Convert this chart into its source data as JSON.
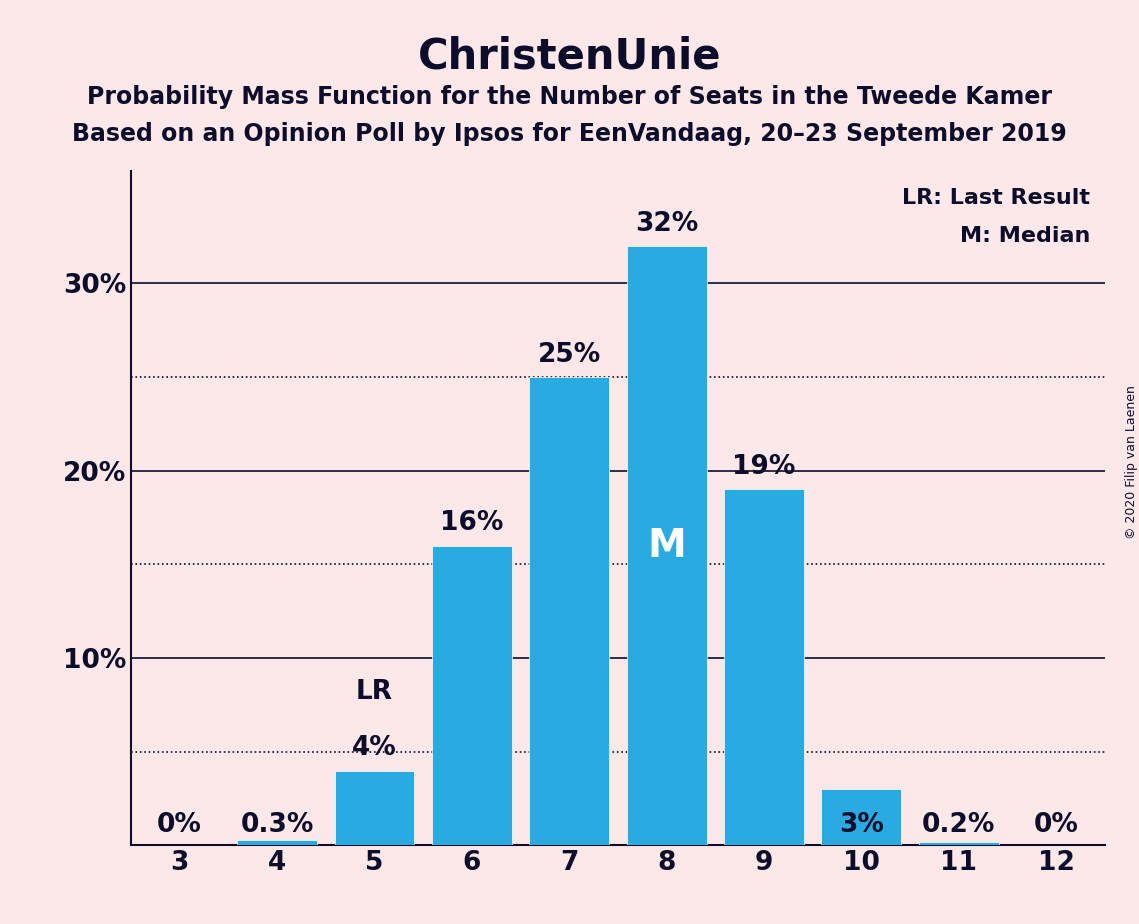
{
  "title": "ChristenUnie",
  "subtitle1": "Probability Mass Function for the Number of Seats in the Tweede Kamer",
  "subtitle2": "Based on an Opinion Poll by Ipsos for EenVandaag, 20–23 September 2019",
  "copyright": "© 2020 Filip van Laenen",
  "seats": [
    3,
    4,
    5,
    6,
    7,
    8,
    9,
    10,
    11,
    12
  ],
  "probabilities": [
    0.0,
    0.3,
    4.0,
    16.0,
    25.0,
    32.0,
    19.0,
    3.0,
    0.2,
    0.0
  ],
  "prob_labels": [
    "0%",
    "0.3%",
    "4%",
    "16%",
    "25%",
    "32%",
    "19%",
    "3%",
    "0.2%",
    "0%"
  ],
  "bar_color": "#29abe2",
  "background_color": "#fce8e8",
  "text_color": "#0d0d2b",
  "median_seat": 8,
  "last_result_seat": 5,
  "yticks": [
    10,
    20,
    30
  ],
  "ytick_labels": [
    "10%",
    "20%",
    "30%"
  ],
  "dotted_gridlines": [
    5,
    15,
    25
  ],
  "solid_gridlines": [
    10,
    20,
    30
  ],
  "ylim": [
    0,
    36
  ],
  "legend_lr": "LR: Last Result",
  "legend_m": "M: Median",
  "title_fontsize": 30,
  "subtitle_fontsize": 17,
  "bar_label_fontsize": 19,
  "axis_label_fontsize": 19,
  "legend_fontsize": 16,
  "copyright_fontsize": 9
}
